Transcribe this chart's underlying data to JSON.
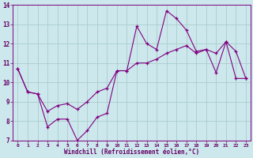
{
  "x": [
    0,
    1,
    2,
    3,
    4,
    5,
    6,
    7,
    8,
    9,
    10,
    11,
    12,
    13,
    14,
    15,
    16,
    17,
    18,
    19,
    20,
    21,
    22,
    23
  ],
  "line1": [
    10.7,
    9.5,
    9.4,
    7.7,
    8.1,
    8.1,
    7.0,
    7.5,
    8.2,
    8.4,
    10.6,
    10.6,
    12.9,
    12.0,
    11.7,
    13.7,
    13.3,
    12.7,
    11.6,
    11.7,
    10.5,
    12.1,
    11.6,
    10.2
  ],
  "line2": [
    10.7,
    9.5,
    9.4,
    8.5,
    8.8,
    8.9,
    8.6,
    9.0,
    9.5,
    9.7,
    10.6,
    10.6,
    11.0,
    11.0,
    11.2,
    11.5,
    11.7,
    11.9,
    11.5,
    11.7,
    11.5,
    12.1,
    10.2,
    10.2
  ],
  "xlabel": "Windchill (Refroidissement éolien,°C)",
  "ylim": [
    7,
    14
  ],
  "xlim": [
    -0.5,
    23.5
  ],
  "yticks": [
    7,
    8,
    9,
    10,
    11,
    12,
    13,
    14
  ],
  "xticks": [
    0,
    1,
    2,
    3,
    4,
    5,
    6,
    7,
    8,
    9,
    10,
    11,
    12,
    13,
    14,
    15,
    16,
    17,
    18,
    19,
    20,
    21,
    22,
    23
  ],
  "line_color": "#800080",
  "bg_color": "#cce8ec",
  "grid_color": "#aacccc"
}
